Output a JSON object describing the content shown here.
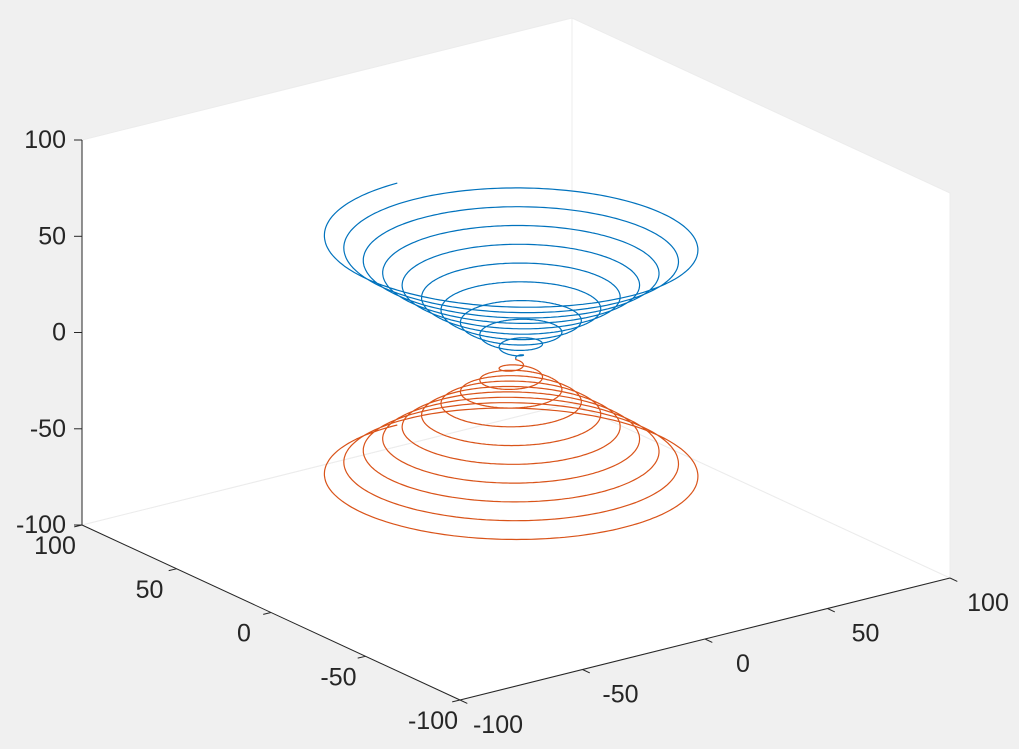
{
  "figure": {
    "background_color": "#f0f0f0",
    "pane_color": "#ffffff",
    "pane_edge_color": "#ececec",
    "axis_color": "#262626",
    "tick_label_color": "#262626",
    "tick_font_size": 25
  },
  "chart_data": {
    "type": "line",
    "subtype": "3d-parametric-conical-spirals",
    "title": "",
    "grid": false,
    "legend": null,
    "view": {
      "azimuth": -37.5,
      "elevation": 30
    },
    "axes": {
      "x": {
        "lim": [
          -100,
          100
        ],
        "ticks": [
          -100,
          -50,
          0,
          50,
          100
        ],
        "tick_labels": [
          "-100",
          "-50",
          "0",
          "50",
          "100"
        ]
      },
      "y": {
        "lim": [
          -100,
          100
        ],
        "ticks": [
          -100,
          -50,
          0,
          50,
          100
        ],
        "tick_labels": [
          "-100",
          "-50",
          "0",
          "50",
          "100"
        ]
      },
      "z": {
        "lim": [
          -100,
          100
        ],
        "ticks": [
          -100,
          -50,
          0,
          50,
          100
        ],
        "tick_labels": [
          "-100",
          "-50",
          "0",
          "50",
          "100"
        ]
      }
    },
    "series": [
      {
        "name": "upper-cone-spiral",
        "color": "#0072BD",
        "x_formula": "t*sin(t)",
        "y_formula": "t*cos(t)",
        "z_formula": "t",
        "z_sign": 1,
        "t_min": 0,
        "t_max": 62.832,
        "samples": 2400,
        "line_width": 1.2
      },
      {
        "name": "lower-cone-spiral",
        "color": "#D95319",
        "x_formula": "t*sin(t)",
        "y_formula": "t*cos(t)",
        "z_formula": "-t",
        "z_sign": -1,
        "t_min": 0,
        "t_max": 62.832,
        "samples": 2400,
        "line_width": 1.2
      }
    ]
  }
}
